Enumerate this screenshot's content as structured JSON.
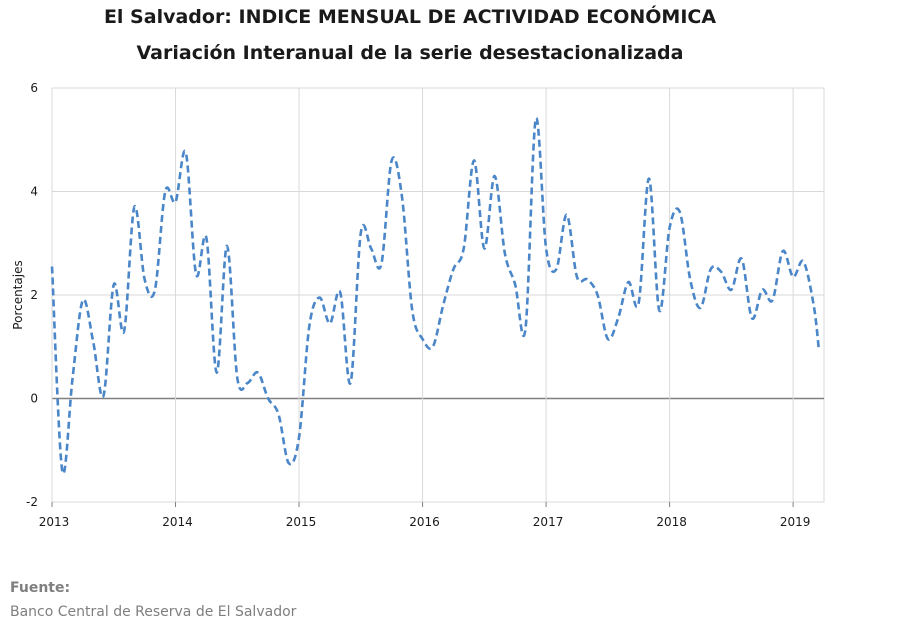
{
  "chart_data": {
    "type": "line",
    "title": "El Salvador: INDICE MENSUAL DE ACTIVIDAD ECONÓMICA",
    "subtitle": "Variación Interanual de la serie desestacionalizada",
    "ylabel": "Porcentajes",
    "xlabel": "",
    "ylim": [
      -2,
      6
    ],
    "yticks": [
      -2,
      0,
      2,
      4,
      6
    ],
    "xlim": [
      2013,
      2019.25
    ],
    "xticks": [
      2013,
      2014,
      2015,
      2016,
      2017,
      2018,
      2019
    ],
    "xticklabels": [
      "2013",
      "2014",
      "2015",
      "2016",
      "2017",
      "2018",
      "2019"
    ],
    "grid": true,
    "legend": "none",
    "series": [
      {
        "color": "#4a86c8",
        "x": [
          2013.0,
          2013.0833,
          2013.1667,
          2013.25,
          2013.3333,
          2013.4167,
          2013.5,
          2013.5833,
          2013.6667,
          2013.75,
          2013.8333,
          2013.9167,
          2014.0,
          2014.0833,
          2014.1667,
          2014.25,
          2014.3333,
          2014.4167,
          2014.5,
          2014.5833,
          2014.6667,
          2014.75,
          2014.8333,
          2014.9167,
          2015.0,
          2015.0833,
          2015.1667,
          2015.25,
          2015.3333,
          2015.4167,
          2015.5,
          2015.5833,
          2015.6667,
          2015.75,
          2015.8333,
          2015.9167,
          2016.0,
          2016.0833,
          2016.1667,
          2016.25,
          2016.3333,
          2016.4167,
          2016.5,
          2016.5833,
          2016.6667,
          2016.75,
          2016.8333,
          2016.9167,
          2017.0,
          2017.0833,
          2017.1667,
          2017.25,
          2017.3333,
          2017.4167,
          2017.5,
          2017.5833,
          2017.6667,
          2017.75,
          2017.8333,
          2017.9167,
          2018.0,
          2018.0833,
          2018.1667,
          2018.25,
          2018.3333,
          2018.4167,
          2018.5,
          2018.5833,
          2018.6667,
          2018.75,
          2018.8333,
          2018.9167,
          2019.0,
          2019.0833,
          2019.1667,
          2019.2083
        ],
        "values": [
          2.55,
          -1.4,
          0.4,
          1.9,
          1.1,
          0.05,
          2.2,
          1.3,
          3.7,
          2.3,
          2.1,
          4.0,
          3.8,
          4.75,
          2.4,
          3.1,
          0.5,
          2.95,
          0.4,
          0.3,
          0.5,
          0.0,
          -0.3,
          -1.25,
          -0.75,
          1.4,
          1.95,
          1.45,
          2.05,
          0.3,
          3.2,
          2.9,
          2.6,
          4.6,
          3.9,
          1.7,
          1.15,
          1.0,
          1.8,
          2.5,
          2.9,
          4.6,
          2.9,
          4.3,
          2.8,
          2.2,
          1.35,
          5.4,
          2.9,
          2.5,
          3.55,
          2.35,
          2.3,
          2.0,
          1.15,
          1.55,
          2.25,
          1.85,
          4.25,
          1.7,
          3.3,
          3.6,
          2.3,
          1.75,
          2.5,
          2.45,
          2.1,
          2.7,
          1.55,
          2.1,
          1.9,
          2.85,
          2.35,
          2.65,
          1.8,
          0.95
        ]
      }
    ]
  },
  "source": {
    "label": "Fuente:",
    "text": "Banco Central de Reserva de El Salvador"
  }
}
